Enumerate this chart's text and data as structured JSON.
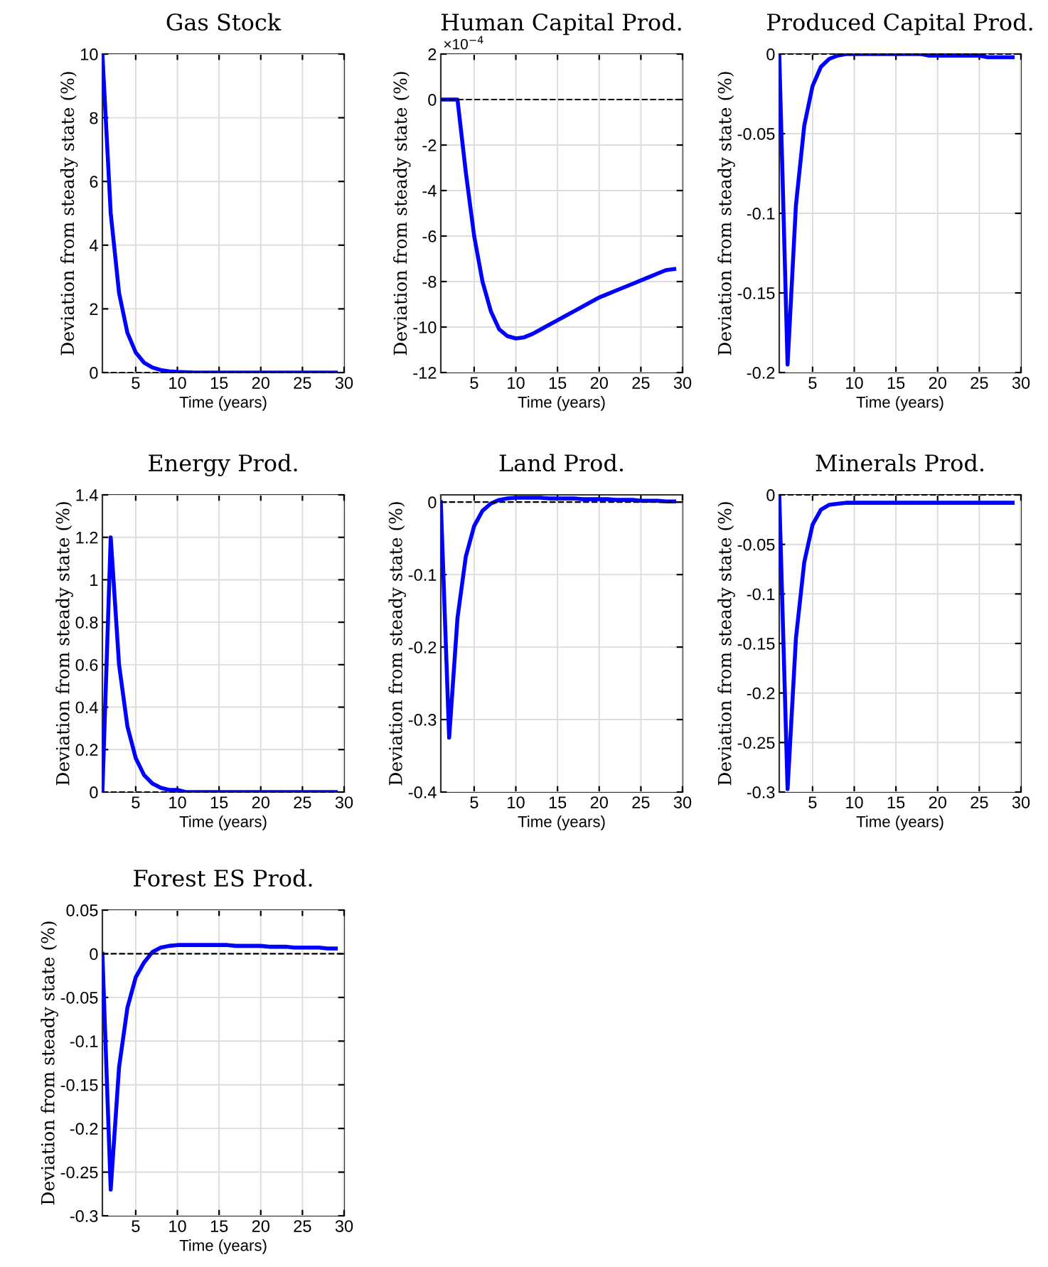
{
  "chart_data": [
    {
      "type": "line",
      "title": "Gas Stock",
      "xlabel": "Time (years)",
      "ylabel": "Deviation from steady state (%)",
      "x": [
        1,
        2,
        3,
        4,
        5,
        6,
        7,
        8,
        9,
        10,
        11,
        12,
        13,
        14,
        15,
        16,
        17,
        18,
        19,
        20,
        21,
        22,
        23,
        24,
        25,
        26,
        27,
        28,
        29
      ],
      "xlim": [
        1,
        30
      ],
      "xticks": [
        5,
        10,
        15,
        20,
        25,
        30
      ],
      "ylim": [
        0,
        10
      ],
      "yticks": [
        0,
        2,
        4,
        6,
        8,
        10
      ],
      "grid": true,
      "series": [
        {
          "color": "#0000ff",
          "values": [
            10,
            5,
            2.5,
            1.25,
            0.63,
            0.31,
            0.16,
            0.08,
            0.04,
            0.02,
            0.01,
            0,
            0,
            0,
            0,
            0,
            0,
            0,
            0,
            0,
            0,
            0,
            0,
            0,
            0,
            0,
            0,
            0,
            0
          ]
        }
      ],
      "ref_lines": [
        {
          "axis": "y",
          "value": 0,
          "color": "#000000",
          "line_style": "dashed"
        }
      ]
    },
    {
      "type": "line",
      "title": "Human Capital Prod.",
      "xlabel": "Time (years)",
      "ylabel": "Deviation from steady state (%)",
      "x": [
        1,
        2,
        3,
        4,
        5,
        6,
        7,
        8,
        9,
        10,
        11,
        12,
        13,
        14,
        15,
        16,
        17,
        18,
        19,
        20,
        21,
        22,
        23,
        24,
        25,
        26,
        27,
        28,
        29
      ],
      "xlim": [
        1,
        30
      ],
      "xticks": [
        5,
        10,
        15,
        20,
        25,
        30
      ],
      "ylim": [
        -12,
        2
      ],
      "yticks": [
        -12,
        -10,
        -8,
        -6,
        -4,
        -2,
        0,
        2
      ],
      "grid": true,
      "annotations": [
        "×10$^{−4}$"
      ],
      "series": [
        {
          "color": "#0000ff",
          "values": [
            0,
            0,
            0,
            -3.2,
            -6,
            -8,
            -9.3,
            -10.1,
            -10.4,
            -10.5,
            -10.45,
            -10.3,
            -10.1,
            -9.9,
            -9.7,
            -9.5,
            -9.3,
            -9.1,
            -8.9,
            -8.7,
            -8.55,
            -8.4,
            -8.25,
            -8.1,
            -7.95,
            -7.8,
            -7.65,
            -7.5,
            -7.45
          ]
        }
      ],
      "ref_lines": [
        {
          "axis": "y",
          "value": 0,
          "color": "#000000",
          "line_style": "dashed"
        }
      ]
    },
    {
      "type": "line",
      "title": "Produced Capital Prod.",
      "xlabel": "Time (years)",
      "ylabel": "Deviation from steady state (%)",
      "x": [
        1,
        2,
        3,
        4,
        5,
        6,
        7,
        8,
        9,
        10,
        11,
        12,
        13,
        14,
        15,
        16,
        17,
        18,
        19,
        20,
        21,
        22,
        23,
        24,
        25,
        26,
        27,
        28,
        29
      ],
      "xlim": [
        1,
        30
      ],
      "xticks": [
        5,
        10,
        15,
        20,
        25,
        30
      ],
      "ylim": [
        -0.2,
        0
      ],
      "yticks": [
        -0.2,
        -0.15,
        -0.1,
        -0.05,
        0
      ],
      "grid": true,
      "series": [
        {
          "color": "#0000ff",
          "values": [
            0,
            -0.195,
            -0.095,
            -0.045,
            -0.02,
            -0.008,
            -0.003,
            -0.001,
            0,
            0,
            0,
            0,
            0,
            0,
            0,
            0,
            0,
            0,
            -0.001,
            -0.001,
            -0.001,
            -0.001,
            -0.001,
            -0.001,
            -0.001,
            -0.002,
            -0.002,
            -0.002,
            -0.002
          ]
        }
      ],
      "ref_lines": [
        {
          "axis": "y",
          "value": 0,
          "color": "#000000",
          "line_style": "dashed"
        }
      ]
    },
    {
      "type": "line",
      "title": "Energy Prod.",
      "xlabel": "Time (years)",
      "ylabel": "Deviation from steady state (%)",
      "x": [
        1,
        2,
        3,
        4,
        5,
        6,
        7,
        8,
        9,
        10,
        11,
        12,
        13,
        14,
        15,
        16,
        17,
        18,
        19,
        20,
        21,
        22,
        23,
        24,
        25,
        26,
        27,
        28,
        29
      ],
      "xlim": [
        1,
        30
      ],
      "xticks": [
        5,
        10,
        15,
        20,
        25,
        30
      ],
      "ylim": [
        0,
        1.4
      ],
      "yticks": [
        0,
        0.2,
        0.4,
        0.6,
        0.8,
        1,
        1.2,
        1.4
      ],
      "grid": true,
      "series": [
        {
          "color": "#0000ff",
          "values": [
            0,
            1.2,
            0.6,
            0.31,
            0.16,
            0.08,
            0.04,
            0.02,
            0.01,
            0.01,
            0,
            0,
            0,
            0,
            0,
            0,
            0,
            0,
            0,
            0,
            0,
            0,
            0,
            0,
            0,
            0,
            0,
            0,
            0
          ]
        }
      ],
      "ref_lines": [
        {
          "axis": "y",
          "value": 0,
          "color": "#000000",
          "line_style": "dashed"
        }
      ]
    },
    {
      "type": "line",
      "title": "Land Prod.",
      "xlabel": "Time (years)",
      "ylabel": "Deviation from steady state (%)",
      "x": [
        1,
        2,
        3,
        4,
        5,
        6,
        7,
        8,
        9,
        10,
        11,
        12,
        13,
        14,
        15,
        16,
        17,
        18,
        19,
        20,
        21,
        22,
        23,
        24,
        25,
        26,
        27,
        28,
        29
      ],
      "xlim": [
        1,
        30
      ],
      "xticks": [
        5,
        10,
        15,
        20,
        25,
        30
      ],
      "ylim": [
        -0.4,
        0.01
      ],
      "yticks": [
        -0.4,
        -0.3,
        -0.2,
        -0.1,
        0
      ],
      "grid": true,
      "series": [
        {
          "color": "#0000ff",
          "values": [
            0,
            -0.325,
            -0.16,
            -0.075,
            -0.033,
            -0.012,
            -0.002,
            0.003,
            0.005,
            0.006,
            0.006,
            0.006,
            0.006,
            0.005,
            0.005,
            0.005,
            0.005,
            0.004,
            0.004,
            0.004,
            0.004,
            0.003,
            0.003,
            0.003,
            0.002,
            0.002,
            0.002,
            0.001,
            0.001
          ]
        }
      ],
      "ref_lines": [
        {
          "axis": "y",
          "value": 0,
          "color": "#000000",
          "line_style": "dashed"
        }
      ]
    },
    {
      "type": "line",
      "title": "Minerals Prod.",
      "xlabel": "Time (years)",
      "ylabel": "Deviation from steady state (%)",
      "x": [
        1,
        2,
        3,
        4,
        5,
        6,
        7,
        8,
        9,
        10,
        11,
        12,
        13,
        14,
        15,
        16,
        17,
        18,
        19,
        20,
        21,
        22,
        23,
        24,
        25,
        26,
        27,
        28,
        29
      ],
      "xlim": [
        1,
        30
      ],
      "xticks": [
        5,
        10,
        15,
        20,
        25,
        30
      ],
      "ylim": [
        -0.3,
        0
      ],
      "yticks": [
        -0.3,
        -0.25,
        -0.2,
        -0.15,
        -0.1,
        -0.05,
        0
      ],
      "grid": true,
      "series": [
        {
          "color": "#0000ff",
          "values": [
            0,
            -0.297,
            -0.145,
            -0.068,
            -0.03,
            -0.015,
            -0.01,
            -0.009,
            -0.008,
            -0.008,
            -0.008,
            -0.008,
            -0.008,
            -0.008,
            -0.008,
            -0.008,
            -0.008,
            -0.008,
            -0.008,
            -0.008,
            -0.008,
            -0.008,
            -0.008,
            -0.008,
            -0.008,
            -0.008,
            -0.008,
            -0.008,
            -0.008
          ]
        }
      ],
      "ref_lines": [
        {
          "axis": "y",
          "value": 0,
          "color": "#000000",
          "line_style": "dashed"
        }
      ]
    },
    {
      "type": "line",
      "title": "Forest ES Prod.",
      "xlabel": "Time (years)",
      "ylabel": "Deviation from steady state (%)",
      "x": [
        1,
        2,
        3,
        4,
        5,
        6,
        7,
        8,
        9,
        10,
        11,
        12,
        13,
        14,
        15,
        16,
        17,
        18,
        19,
        20,
        21,
        22,
        23,
        24,
        25,
        26,
        27,
        28,
        29
      ],
      "xlim": [
        1,
        30
      ],
      "xticks": [
        5,
        10,
        15,
        20,
        25,
        30
      ],
      "ylim": [
        -0.3,
        0.05
      ],
      "yticks": [
        -0.3,
        -0.25,
        -0.2,
        -0.15,
        -0.1,
        -0.05,
        0,
        0.05
      ],
      "grid": true,
      "series": [
        {
          "color": "#0000ff",
          "values": [
            0,
            -0.27,
            -0.13,
            -0.062,
            -0.027,
            -0.01,
            0.002,
            0.007,
            0.009,
            0.01,
            0.01,
            0.01,
            0.01,
            0.01,
            0.01,
            0.01,
            0.009,
            0.009,
            0.009,
            0.009,
            0.008,
            0.008,
            0.008,
            0.007,
            0.007,
            0.007,
            0.007,
            0.006,
            0.006
          ]
        }
      ],
      "ref_lines": [
        {
          "axis": "y",
          "value": 0,
          "color": "#000000",
          "line_style": "dashed"
        }
      ]
    }
  ]
}
